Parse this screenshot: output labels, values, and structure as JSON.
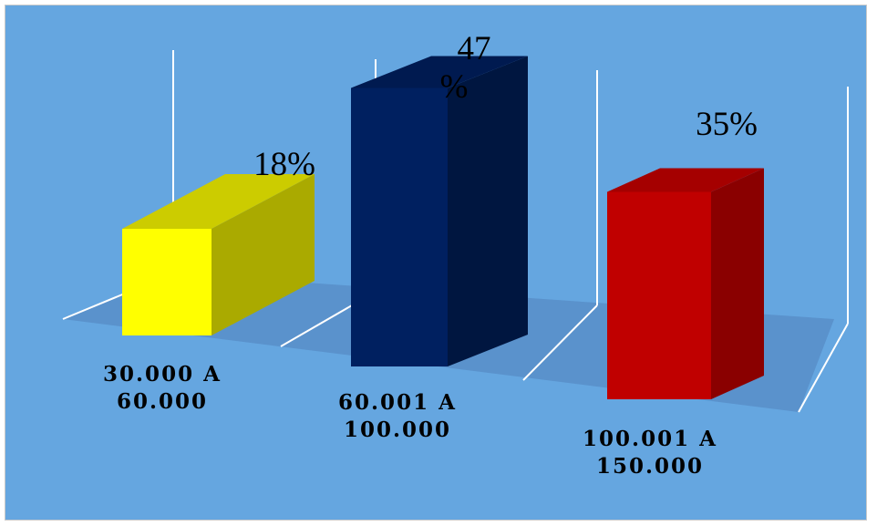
{
  "chart_data": {
    "type": "bar",
    "title": "",
    "xlabel": "",
    "ylabel": "",
    "categories": [
      "30.000 A 60.000",
      "60.001 A 100.000",
      "100.001 A 150.000"
    ],
    "category_lines": [
      [
        "30.000 A",
        "60.000"
      ],
      [
        "60.001 A",
        "100.000"
      ],
      [
        "100.001 A",
        "150.000"
      ]
    ],
    "values": [
      18,
      47,
      35
    ],
    "data_labels": [
      [
        "18%"
      ],
      [
        "47",
        "%"
      ],
      [
        "35%"
      ]
    ],
    "unit": "%",
    "ylim": [
      0,
      50
    ],
    "three_d": true,
    "grid": false,
    "legend": "none"
  },
  "colors": {
    "background": "#65a6e0",
    "floor": "#5a92cc",
    "wall_lines": "#ffffff",
    "bars": [
      {
        "front": "#ffff00",
        "side": "#aaaa00",
        "top": "#cccc00"
      },
      {
        "front": "#002060",
        "side": "#001640",
        "top": "#001a50"
      },
      {
        "front": "#c00000",
        "side": "#8a0000",
        "top": "#a50000"
      }
    ]
  }
}
